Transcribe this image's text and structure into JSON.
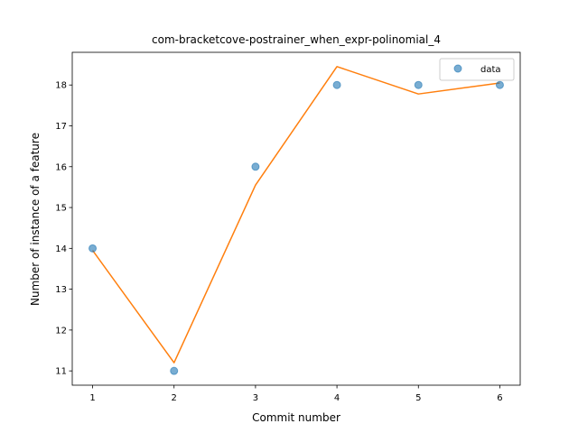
{
  "chart_data": {
    "type": "scatter",
    "title": "com-bracketcove-postrainer_when_expr-polinomial_4",
    "xlabel": "Commit number",
    "ylabel": "Number of instance of a feature",
    "xlim": [
      0.75,
      6.25
    ],
    "ylim": [
      10.65,
      18.8
    ],
    "xticks": [
      1,
      2,
      3,
      4,
      5,
      6
    ],
    "yticks": [
      11,
      12,
      13,
      14,
      15,
      16,
      17,
      18
    ],
    "grid": false,
    "legend_position": "top-right",
    "series": [
      {
        "name": "data",
        "kind": "scatter",
        "color": "#1f77b4",
        "x": [
          1,
          2,
          3,
          4,
          5,
          6
        ],
        "y": [
          14,
          11,
          16,
          18,
          18,
          18
        ]
      },
      {
        "kind": "line",
        "color": "#ff7f0e",
        "x": [
          1,
          2,
          3,
          4,
          5,
          6
        ],
        "y": [
          13.95,
          11.2,
          15.55,
          18.45,
          17.78,
          18.05
        ]
      }
    ]
  }
}
